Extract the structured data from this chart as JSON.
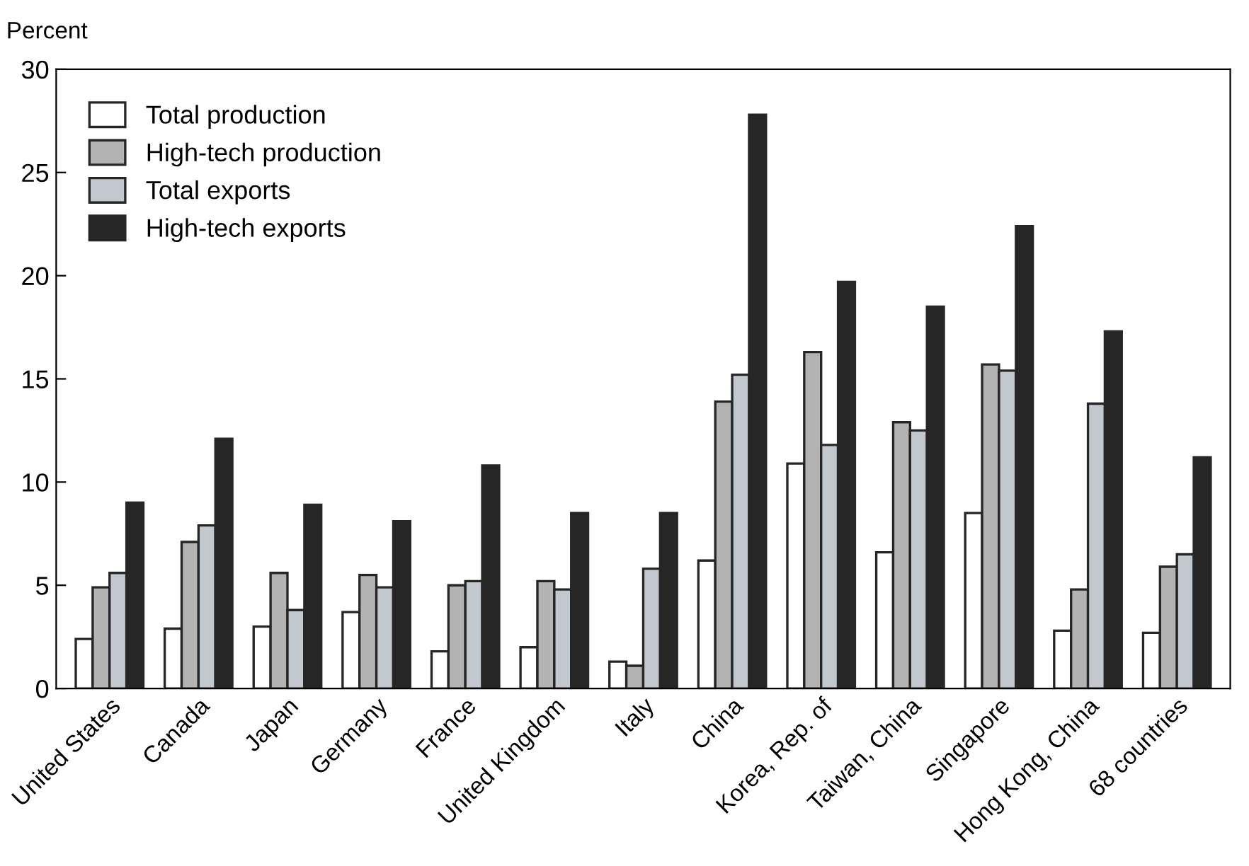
{
  "chart_data": {
    "type": "bar",
    "ylabel": "Percent",
    "categories": [
      "United States",
      "Canada",
      "Japan",
      "Germany",
      "France",
      "United Kingdom",
      "Italy",
      "China",
      "Korea, Rep. of",
      "Taiwan, China",
      "Singapore",
      "Hong Kong, China",
      "68 countries"
    ],
    "series": [
      {
        "name": "Total production",
        "color": "#ffffff",
        "values": [
          2.4,
          2.9,
          3.0,
          3.7,
          1.8,
          2.0,
          1.3,
          6.2,
          10.9,
          6.6,
          8.5,
          2.8,
          2.7
        ]
      },
      {
        "name": "High-tech production",
        "color": "#b3b3b3",
        "values": [
          4.9,
          7.1,
          5.6,
          5.5,
          5.0,
          5.2,
          1.1,
          13.9,
          16.3,
          12.9,
          15.7,
          4.8,
          5.9
        ]
      },
      {
        "name": "Total exports",
        "color": "#c3c8ce",
        "values": [
          5.6,
          7.9,
          3.8,
          4.9,
          5.2,
          4.8,
          5.8,
          15.2,
          11.8,
          12.5,
          15.4,
          13.8,
          6.5
        ]
      },
      {
        "name": "High-tech exports",
        "color": "#262626",
        "values": [
          9.0,
          12.1,
          8.9,
          8.1,
          10.8,
          8.5,
          8.5,
          27.8,
          19.7,
          18.5,
          22.4,
          17.3,
          11.2
        ]
      }
    ],
    "ylim": [
      0,
      30
    ],
    "yticks": [
      0,
      5,
      10,
      15,
      20,
      25,
      30
    ],
    "grid": false,
    "legend": "top left"
  }
}
